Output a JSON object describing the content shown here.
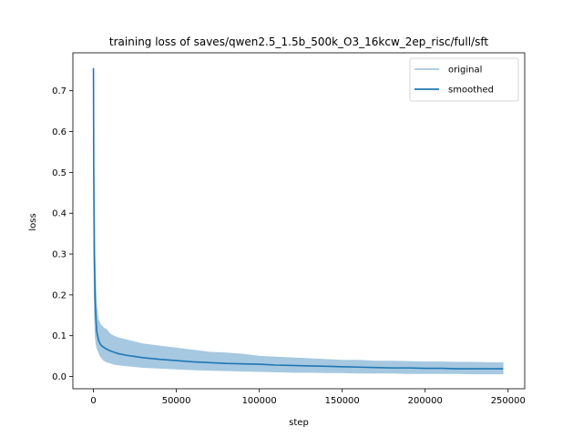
{
  "chart_data": {
    "type": "line",
    "title": "training loss of saves/qwen2.5_1.5b_500k_O3_16kcw_2ep_risc/full/sft",
    "xlabel": "step",
    "ylabel": "loss",
    "xlim": [
      -12400,
      260000
    ],
    "ylim": [
      -0.03,
      0.793
    ],
    "xticks": [
      0,
      50000,
      100000,
      150000,
      200000,
      250000
    ],
    "xtick_labels": [
      "0",
      "50000",
      "100000",
      "150000",
      "200000",
      "250000"
    ],
    "yticks": [
      0.0,
      0.1,
      0.2,
      0.3,
      0.4,
      0.5,
      0.6,
      0.7
    ],
    "ytick_labels": [
      "0.0",
      "0.1",
      "0.2",
      "0.3",
      "0.4",
      "0.5",
      "0.6",
      "0.7"
    ],
    "grid": false,
    "legend_position": "top-right",
    "series": [
      {
        "name": "original",
        "color": "#a6c8e0",
        "x": [
          0,
          200,
          500,
          1000,
          1500,
          2000,
          3000,
          4000,
          5000,
          6000,
          8000,
          10000,
          12000,
          15000,
          20000,
          25000,
          30000,
          40000,
          50000,
          60000,
          70000,
          80000,
          90000,
          100000,
          110000,
          120000,
          130000,
          140000,
          150000,
          160000,
          170000,
          180000,
          190000,
          200000,
          210000,
          220000,
          230000,
          240000,
          247000
        ],
        "upper": [
          0.76,
          0.62,
          0.45,
          0.3,
          0.22,
          0.17,
          0.14,
          0.13,
          0.125,
          0.12,
          0.115,
          0.105,
          0.1,
          0.095,
          0.09,
          0.085,
          0.08,
          0.075,
          0.07,
          0.065,
          0.06,
          0.058,
          0.055,
          0.05,
          0.048,
          0.046,
          0.044,
          0.042,
          0.04,
          0.04,
          0.038,
          0.038,
          0.037,
          0.036,
          0.036,
          0.035,
          0.035,
          0.034,
          0.034
        ],
        "lower": [
          0.5,
          0.3,
          0.16,
          0.1,
          0.08,
          0.07,
          0.06,
          0.05,
          0.045,
          0.04,
          0.035,
          0.033,
          0.03,
          0.028,
          0.026,
          0.024,
          0.022,
          0.02,
          0.018,
          0.016,
          0.015,
          0.014,
          0.013,
          0.012,
          0.011,
          0.01,
          0.01,
          0.009,
          0.009,
          0.008,
          0.008,
          0.008,
          0.007,
          0.007,
          0.007,
          0.007,
          0.006,
          0.006,
          0.006
        ]
      },
      {
        "name": "smoothed",
        "color": "#1f77b4",
        "x": [
          0,
          200,
          500,
          1000,
          1500,
          2000,
          3000,
          4000,
          5000,
          6000,
          8000,
          10000,
          12000,
          15000,
          20000,
          25000,
          30000,
          40000,
          50000,
          60000,
          70000,
          80000,
          90000,
          100000,
          110000,
          120000,
          130000,
          140000,
          150000,
          160000,
          170000,
          180000,
          190000,
          200000,
          210000,
          220000,
          230000,
          240000,
          247000
        ],
        "values": [
          0.755,
          0.5,
          0.3,
          0.19,
          0.14,
          0.11,
          0.09,
          0.08,
          0.075,
          0.072,
          0.067,
          0.063,
          0.06,
          0.056,
          0.052,
          0.049,
          0.046,
          0.042,
          0.039,
          0.036,
          0.034,
          0.032,
          0.031,
          0.03,
          0.028,
          0.027,
          0.026,
          0.025,
          0.024,
          0.023,
          0.022,
          0.021,
          0.021,
          0.02,
          0.02,
          0.019,
          0.019,
          0.019,
          0.019
        ]
      }
    ]
  }
}
